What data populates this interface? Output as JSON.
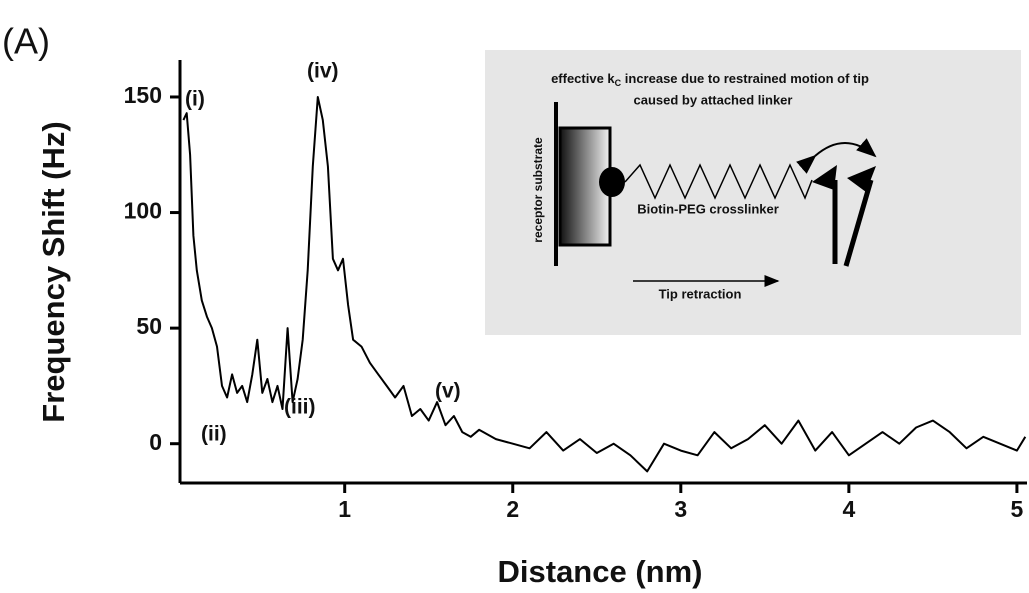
{
  "chart_data": {
    "type": "line",
    "panel_label": "(A)",
    "x_label": "Distance (nm)",
    "y_label": "Frequency Shift (Hz)",
    "xlim": [
      0.02,
      5.06
    ],
    "ylim": [
      -17,
      166
    ],
    "xticks": [
      1,
      2,
      3,
      4,
      5
    ],
    "yticks": [
      0,
      50,
      100,
      150
    ],
    "grid": false,
    "color": "#000000",
    "x": [
      0.04,
      0.06,
      0.08,
      0.1,
      0.12,
      0.15,
      0.18,
      0.21,
      0.24,
      0.27,
      0.3,
      0.33,
      0.36,
      0.39,
      0.42,
      0.45,
      0.48,
      0.51,
      0.54,
      0.57,
      0.6,
      0.63,
      0.66,
      0.69,
      0.72,
      0.75,
      0.78,
      0.81,
      0.84,
      0.87,
      0.9,
      0.93,
      0.96,
      0.99,
      1.02,
      1.05,
      1.1,
      1.15,
      1.2,
      1.25,
      1.3,
      1.35,
      1.4,
      1.45,
      1.5,
      1.55,
      1.6,
      1.65,
      1.7,
      1.75,
      1.8,
      1.9,
      2.0,
      2.1,
      2.2,
      2.3,
      2.4,
      2.5,
      2.6,
      2.7,
      2.8,
      2.9,
      3.0,
      3.1,
      3.2,
      3.3,
      3.4,
      3.5,
      3.6,
      3.7,
      3.8,
      3.9,
      4.0,
      4.1,
      4.2,
      4.3,
      4.4,
      4.5,
      4.6,
      4.7,
      4.8,
      4.9,
      5.0,
      5.05
    ],
    "values": [
      140,
      143,
      125,
      90,
      75,
      62,
      55,
      50,
      42,
      25,
      20,
      30,
      22,
      25,
      18,
      30,
      45,
      22,
      28,
      18,
      25,
      15,
      50,
      18,
      28,
      45,
      75,
      120,
      150,
      140,
      120,
      80,
      75,
      80,
      60,
      45,
      42,
      35,
      30,
      25,
      20,
      25,
      12,
      15,
      10,
      18,
      8,
      12,
      5,
      3,
      6,
      2,
      0,
      -2,
      5,
      -3,
      2,
      -4,
      0,
      -5,
      -12,
      0,
      -3,
      -5,
      5,
      -2,
      2,
      8,
      0,
      10,
      -3,
      5,
      -5,
      0,
      5,
      0,
      7,
      10,
      5,
      -2,
      3,
      0,
      -3,
      3
    ],
    "annotations": [
      "(i)",
      "(ii)",
      "(iii)",
      "(iv)",
      "(v)"
    ],
    "inset": {
      "title_line1_a": "effective k",
      "title_line1_sub": "C",
      "title_line1_b": " increase due to restrained motion of tip",
      "title_line2": "caused by attached linker",
      "substrate": "receptor substrate",
      "linker": "Biotin-PEG crosslinker",
      "retraction": "Tip retraction"
    }
  }
}
